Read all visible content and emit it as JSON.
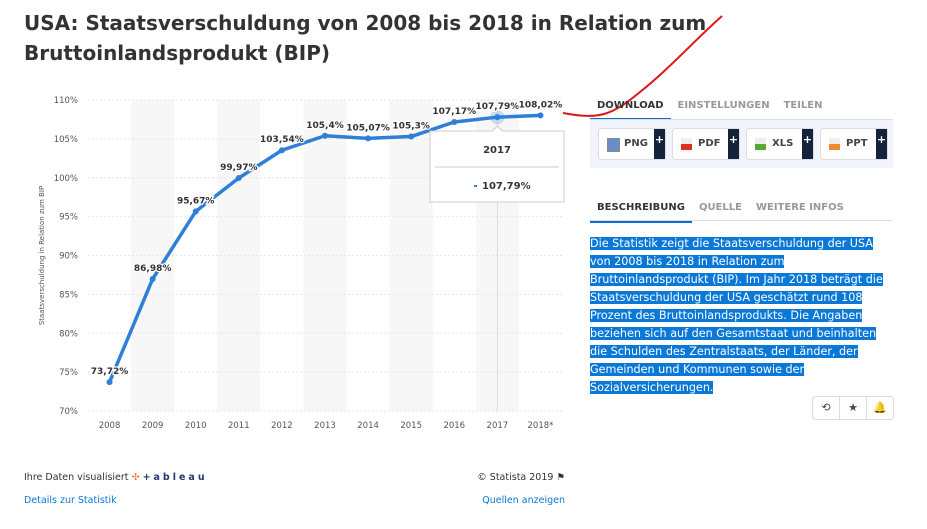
{
  "title": "USA: Staatsverschuldung von 2008 bis 2018 in Relation zum Bruttoinlandsprodukt (BIP)",
  "chart_data": {
    "type": "line",
    "ylabel": "Staatsverschuldung in Relation zum BIP",
    "categories": [
      "2008",
      "2009",
      "2010",
      "2011",
      "2012",
      "2013",
      "2014",
      "2015",
      "2016",
      "2017",
      "2018*"
    ],
    "values": [
      73.72,
      86.98,
      95.67,
      99.97,
      103.54,
      105.4,
      105.07,
      105.3,
      107.17,
      107.79,
      108.02
    ],
    "data_labels": [
      "73,72%",
      "86,98%",
      "95,67%",
      "99,97%",
      "103,54%",
      "105,4%",
      "105,07%",
      "105,3%",
      "107,17%",
      "107,79%",
      "108,02%"
    ],
    "ylim": [
      70,
      110
    ],
    "yticks": [
      "70%",
      "75%",
      "80%",
      "85%",
      "90%",
      "95%",
      "100%",
      "105%",
      "110%"
    ],
    "grid": true,
    "series_color": "#2f7ed8",
    "tooltip": {
      "year": "2017",
      "value": "107,79%"
    }
  },
  "download_tabs": [
    "DOWNLOAD",
    "EINSTELLUNGEN",
    "TEILEN"
  ],
  "download_buttons": [
    {
      "label": "PNG",
      "plus": "+"
    },
    {
      "label": "PDF",
      "plus": "+"
    },
    {
      "label": "XLS",
      "plus": "+"
    },
    {
      "label": "PPT",
      "plus": "+"
    }
  ],
  "info_tabs": [
    "BESCHREIBUNG",
    "QUELLE",
    "WEITERE INFOS"
  ],
  "description": "Die Statistik zeigt die Staatsverschuldung der USA von 2008 bis 2018 in Relation zum Bruttoinlandsprodukt (BIP). Im Jahr 2018 beträgt die Staatsverschuldung der USA geschätzt rund 108 Prozent des Bruttoinlandsprodukts. Die Angaben beziehen sich auf den Gesamtstaat und beinhalten die Schulden des Zentralstaats, der Länder, der Gemeinden und Kommunen sowie der Sozialversicherungen.",
  "actions": {
    "history": "⟲",
    "star": "★",
    "bell": "🔔"
  },
  "footer": {
    "visualized": "Ihre Daten visualisiert",
    "tableau": "+ableau",
    "copyright": "© Statista 2019",
    "details": "Details zur Statistik",
    "sources": "Quellen anzeigen"
  }
}
